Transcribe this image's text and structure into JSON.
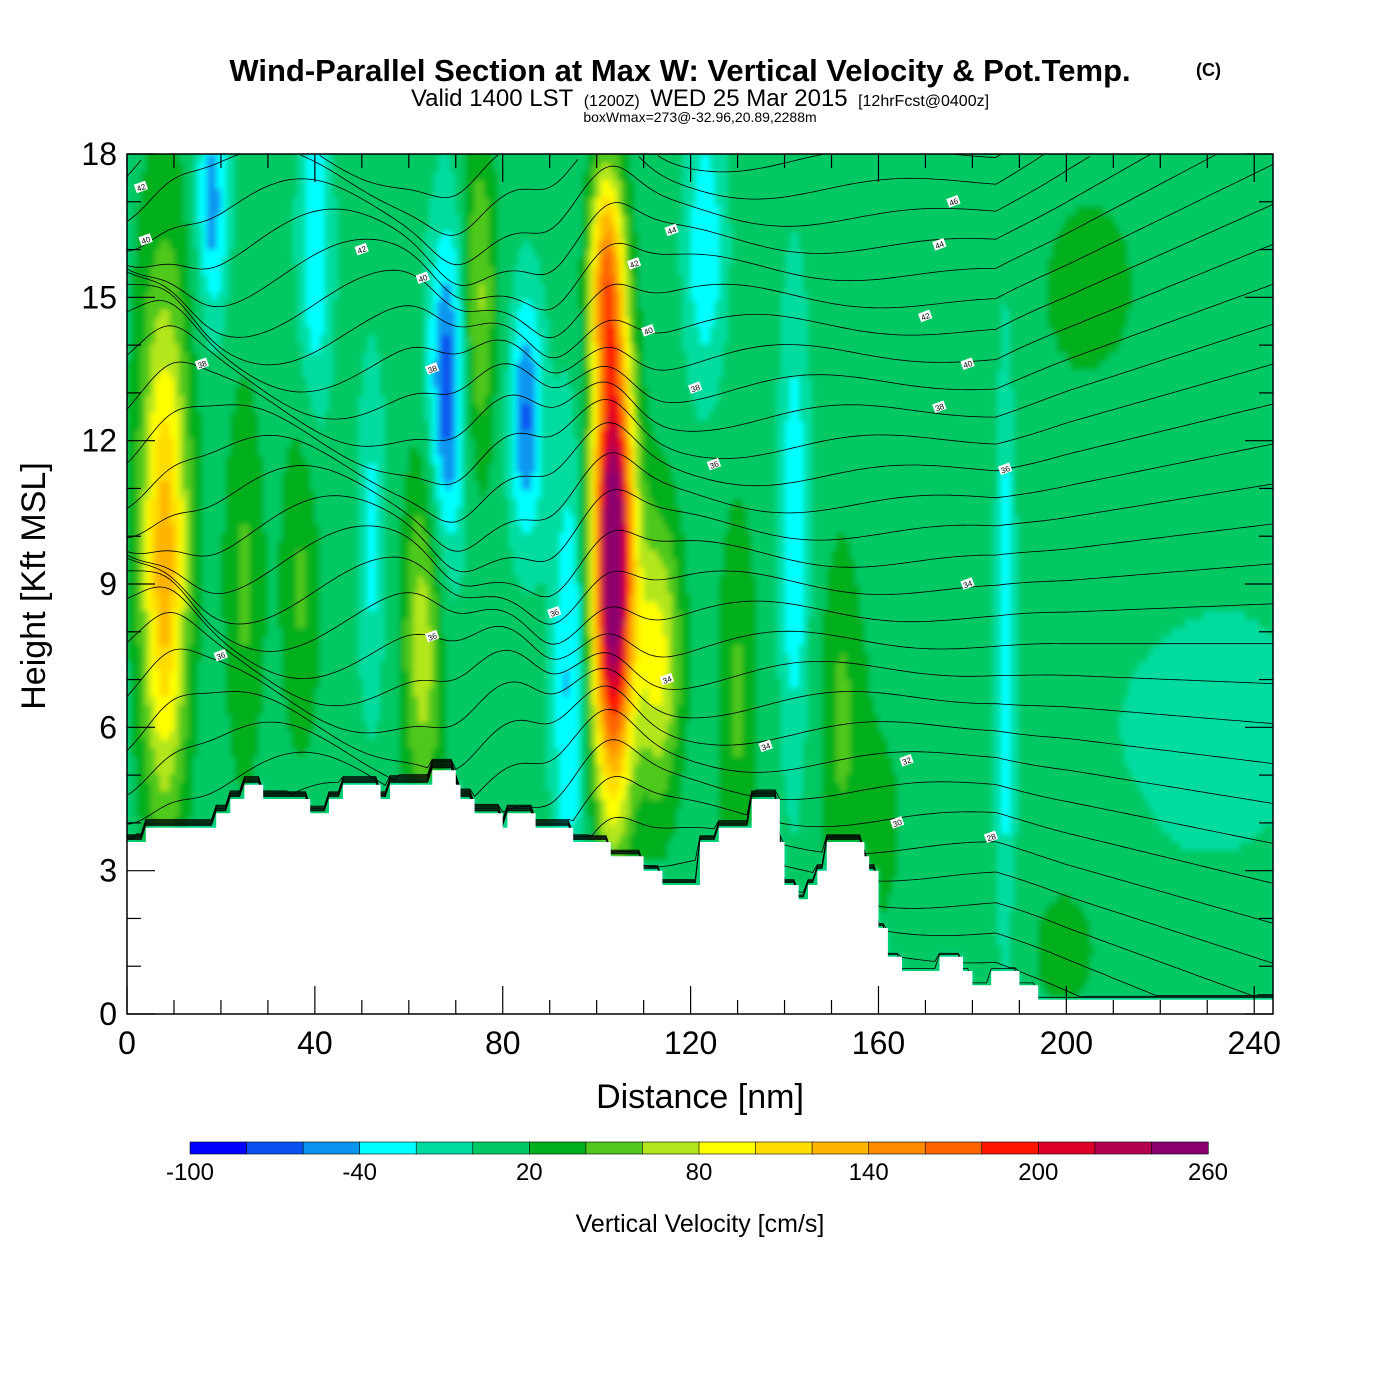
{
  "chart_data": {
    "type": "contour",
    "title": "Wind-Parallel Section at Max W: Vertical Velocity & Pot.Temp.",
    "title_mark": "(C)",
    "subtitle": {
      "valid": "Valid 1400 LST",
      "utc": "(1200Z)",
      "date": "WED 25 Mar 2015",
      "forecast": "[12hrFcst@0400z]"
    },
    "note": "boxWmax=273@-32.96,20.89,2288m",
    "xlabel": "Distance [nm]",
    "ylabel": "Height [Kft MSL]",
    "xlim": [
      0,
      244
    ],
    "ylim": [
      0,
      18
    ],
    "x_ticks": [
      "0",
      "40",
      "80",
      "120",
      "160",
      "200",
      "240"
    ],
    "y_ticks": [
      "0",
      "3",
      "6",
      "9",
      "12",
      "15",
      "18"
    ],
    "colorbar": {
      "title": "Vertical Velocity [cm/s]",
      "labels": [
        "-100",
        "-40",
        "20",
        "80",
        "140",
        "200",
        "260"
      ],
      "levels": [
        -100,
        -80,
        -60,
        -40,
        -20,
        0,
        20,
        40,
        60,
        80,
        100,
        120,
        140,
        160,
        180,
        200,
        220,
        240,
        260
      ],
      "colors": [
        "#0000ff",
        "#0a50f0",
        "#0a96f0",
        "#00ffff",
        "#00dca0",
        "#00c864",
        "#00af1e",
        "#50c81e",
        "#b4e61e",
        "#ffff00",
        "#ffdc00",
        "#ffb400",
        "#ff8c00",
        "#ff6400",
        "#ff1400",
        "#dc0028",
        "#b40050",
        "#8c006e"
      ]
    },
    "terrain_top_kft": [
      [
        0,
        3.6
      ],
      [
        4,
        3.9
      ],
      [
        17,
        3.9
      ],
      [
        19,
        4.2
      ],
      [
        22,
        4.5
      ],
      [
        25,
        4.8
      ],
      [
        29,
        4.5
      ],
      [
        37,
        4.5
      ],
      [
        39,
        4.2
      ],
      [
        43,
        4.5
      ],
      [
        46,
        4.8
      ],
      [
        53,
        4.8
      ],
      [
        54,
        4.5
      ],
      [
        56,
        4.8
      ],
      [
        62,
        4.8
      ],
      [
        65,
        5.1
      ],
      [
        69,
        5.1
      ],
      [
        70,
        4.8
      ],
      [
        71,
        4.5
      ],
      [
        74,
        4.2
      ],
      [
        79,
        4.2
      ],
      [
        80,
        3.9
      ],
      [
        81,
        4.2
      ],
      [
        85,
        4.2
      ],
      [
        87,
        3.9
      ],
      [
        92,
        3.9
      ],
      [
        95,
        3.6
      ],
      [
        100,
        3.6
      ],
      [
        103,
        3.3
      ],
      [
        108,
        3.3
      ],
      [
        110,
        3.0
      ],
      [
        112,
        3.0
      ],
      [
        114,
        2.7
      ],
      [
        116,
        2.7
      ],
      [
        120,
        2.7
      ],
      [
        122,
        3.6
      ],
      [
        126,
        3.9
      ],
      [
        132,
        3.9
      ],
      [
        133,
        4.5
      ],
      [
        138,
        4.5
      ],
      [
        139,
        3.6
      ],
      [
        140,
        2.7
      ],
      [
        143,
        2.4
      ],
      [
        145,
        2.7
      ],
      [
        147,
        3.0
      ],
      [
        149,
        3.6
      ],
      [
        154,
        3.6
      ],
      [
        157,
        3.3
      ],
      [
        158,
        3.0
      ],
      [
        160,
        1.8
      ],
      [
        162,
        1.2
      ],
      [
        163,
        1.2
      ],
      [
        165,
        0.9
      ],
      [
        171,
        0.9
      ],
      [
        173,
        1.2
      ],
      [
        177,
        1.2
      ],
      [
        178,
        0.9
      ],
      [
        180,
        0.6
      ],
      [
        183,
        0.6
      ],
      [
        184,
        0.9
      ],
      [
        187,
        0.9
      ],
      [
        190,
        0.6
      ],
      [
        193,
        0.6
      ],
      [
        194,
        0.3
      ],
      [
        244,
        0.3
      ]
    ],
    "velocity_cells_cms": [
      {
        "x": 8,
        "y": 9.0,
        "w": 100,
        "comment_label": "",
        "rx": 4,
        "ry": 4.5
      },
      {
        "x": 103,
        "y": 9.5,
        "w": 273,
        "comment_label": "",
        "rx": 5,
        "ry": 5.5
      },
      {
        "x": 113,
        "y": 7.5,
        "w": 90,
        "comment_label": "",
        "rx": 4,
        "ry": 3
      },
      {
        "x": 63,
        "y": 7.5,
        "w": 70,
        "comment_label": "",
        "rx": 3,
        "ry": 3
      },
      {
        "x": 68,
        "y": 13.0,
        "w": -70,
        "comment_label": "",
        "rx": 3,
        "ry": 2.5
      },
      {
        "x": 85,
        "y": 12.5,
        "w": -60,
        "comment_label": "",
        "rx": 3,
        "ry": 2
      },
      {
        "x": 18,
        "y": 17.0,
        "w": -50,
        "comment_label": "",
        "rx": 3,
        "ry": 1.5
      }
    ],
    "theta_contour_labels": [
      {
        "x": 3,
        "y": 17.3,
        "text": "42"
      },
      {
        "x": 4,
        "y": 16.2,
        "text": "40"
      },
      {
        "x": 16,
        "y": 13.6,
        "text": "38"
      },
      {
        "x": 20,
        "y": 7.5,
        "text": "36"
      },
      {
        "x": 50,
        "y": 16.0,
        "text": "42"
      },
      {
        "x": 63,
        "y": 15.4,
        "text": "40"
      },
      {
        "x": 65,
        "y": 13.5,
        "text": "38"
      },
      {
        "x": 65,
        "y": 7.9,
        "text": "36"
      },
      {
        "x": 91,
        "y": 8.4,
        "text": "36"
      },
      {
        "x": 108,
        "y": 15.7,
        "text": "42"
      },
      {
        "x": 111,
        "y": 14.3,
        "text": "40"
      },
      {
        "x": 116,
        "y": 16.4,
        "text": "44"
      },
      {
        "x": 121,
        "y": 13.1,
        "text": "38"
      },
      {
        "x": 125,
        "y": 11.5,
        "text": "36"
      },
      {
        "x": 115,
        "y": 7.0,
        "text": "34"
      },
      {
        "x": 136,
        "y": 5.6,
        "text": "34"
      },
      {
        "x": 176,
        "y": 17.0,
        "text": "46"
      },
      {
        "x": 173,
        "y": 16.1,
        "text": "44"
      },
      {
        "x": 170,
        "y": 14.6,
        "text": "42"
      },
      {
        "x": 179,
        "y": 13.6,
        "text": "40"
      },
      {
        "x": 173,
        "y": 12.7,
        "text": "38"
      },
      {
        "x": 187,
        "y": 11.4,
        "text": "36"
      },
      {
        "x": 179,
        "y": 9.0,
        "text": "34"
      },
      {
        "x": 166,
        "y": 5.3,
        "text": "32"
      },
      {
        "x": 164,
        "y": 4.0,
        "text": "30"
      },
      {
        "x": 184,
        "y": 3.7,
        "text": "28"
      }
    ]
  }
}
